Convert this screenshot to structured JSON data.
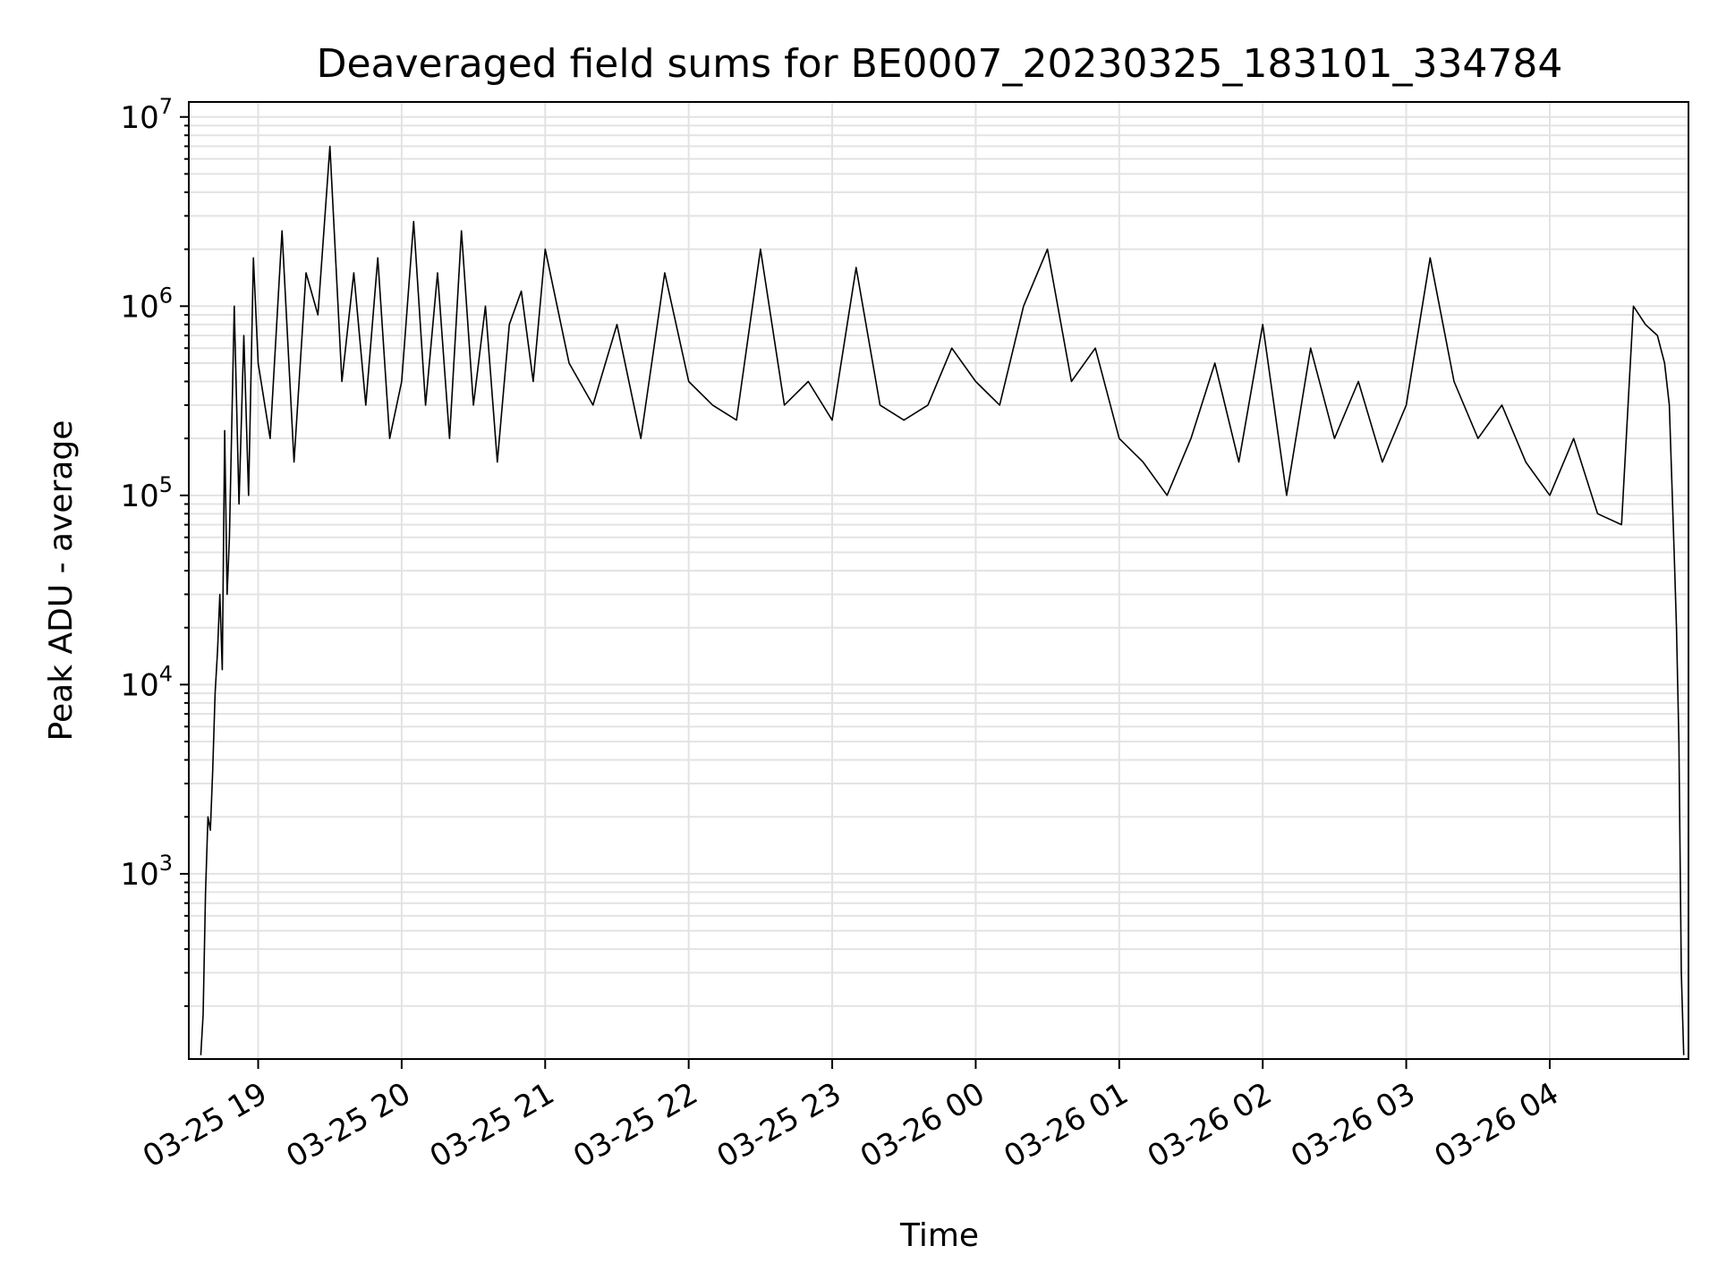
{
  "chart_data": {
    "type": "line",
    "title": "Deaveraged field sums for BE0007_20230325_183101_334784",
    "xlabel": "Time",
    "ylabel": "Peak ADU - average",
    "y_scale": "log",
    "ylim": [
      105,
      12000000
    ],
    "xlim": [
      "2023-03-25 18:31",
      "2023-03-26 04:58"
    ],
    "grid": true,
    "line_color": "#000000",
    "x_ticks": [
      {
        "t": "2023-03-25 19:00",
        "label": "03-25 19"
      },
      {
        "t": "2023-03-25 20:00",
        "label": "03-25 20"
      },
      {
        "t": "2023-03-25 21:00",
        "label": "03-25 21"
      },
      {
        "t": "2023-03-25 22:00",
        "label": "03-25 22"
      },
      {
        "t": "2023-03-25 23:00",
        "label": "03-25 23"
      },
      {
        "t": "2023-03-26 00:00",
        "label": "03-26 00"
      },
      {
        "t": "2023-03-26 01:00",
        "label": "03-26 01"
      },
      {
        "t": "2023-03-26 02:00",
        "label": "03-26 02"
      },
      {
        "t": "2023-03-26 03:00",
        "label": "03-26 03"
      },
      {
        "t": "2023-03-26 04:00",
        "label": "03-26 04"
      }
    ],
    "y_ticks": [
      {
        "value": 1000,
        "base": "10",
        "exp": "3"
      },
      {
        "value": 10000,
        "base": "10",
        "exp": "4"
      },
      {
        "value": 100000,
        "base": "10",
        "exp": "5"
      },
      {
        "value": 1000000,
        "base": "10",
        "exp": "6"
      },
      {
        "value": 10000000,
        "base": "10",
        "exp": "7"
      }
    ],
    "series": [
      {
        "x": [
          "2023-03-25 18:36",
          "2023-03-25 18:37",
          "2023-03-25 18:38",
          "2023-03-25 18:39",
          "2023-03-25 18:40",
          "2023-03-25 18:41",
          "2023-03-25 18:42",
          "2023-03-25 18:43",
          "2023-03-25 18:44",
          "2023-03-25 18:45",
          "2023-03-25 18:46",
          "2023-03-25 18:47",
          "2023-03-25 18:48",
          "2023-03-25 18:50",
          "2023-03-25 18:52",
          "2023-03-25 18:54",
          "2023-03-25 18:56",
          "2023-03-25 18:58",
          "2023-03-25 19:00",
          "2023-03-25 19:05",
          "2023-03-25 19:10",
          "2023-03-25 19:15",
          "2023-03-25 19:20",
          "2023-03-25 19:25",
          "2023-03-25 19:30",
          "2023-03-25 19:35",
          "2023-03-25 19:40",
          "2023-03-25 19:45",
          "2023-03-25 19:50",
          "2023-03-25 19:55",
          "2023-03-25 20:00",
          "2023-03-25 20:05",
          "2023-03-25 20:10",
          "2023-03-25 20:15",
          "2023-03-25 20:20",
          "2023-03-25 20:25",
          "2023-03-25 20:30",
          "2023-03-25 20:35",
          "2023-03-25 20:40",
          "2023-03-25 20:45",
          "2023-03-25 20:50",
          "2023-03-25 20:55",
          "2023-03-25 21:00",
          "2023-03-25 21:10",
          "2023-03-25 21:20",
          "2023-03-25 21:30",
          "2023-03-25 21:40",
          "2023-03-25 21:50",
          "2023-03-25 22:00",
          "2023-03-25 22:10",
          "2023-03-25 22:20",
          "2023-03-25 22:30",
          "2023-03-25 22:40",
          "2023-03-25 22:50",
          "2023-03-25 23:00",
          "2023-03-25 23:10",
          "2023-03-25 23:20",
          "2023-03-25 23:30",
          "2023-03-25 23:40",
          "2023-03-25 23:50",
          "2023-03-26 00:00",
          "2023-03-26 00:10",
          "2023-03-26 00:20",
          "2023-03-26 00:30",
          "2023-03-26 00:40",
          "2023-03-26 00:50",
          "2023-03-26 01:00",
          "2023-03-26 01:10",
          "2023-03-26 01:20",
          "2023-03-26 01:30",
          "2023-03-26 01:40",
          "2023-03-26 01:50",
          "2023-03-26 02:00",
          "2023-03-26 02:10",
          "2023-03-26 02:20",
          "2023-03-26 02:30",
          "2023-03-26 02:40",
          "2023-03-26 02:50",
          "2023-03-26 03:00",
          "2023-03-26 03:10",
          "2023-03-26 03:20",
          "2023-03-26 03:30",
          "2023-03-26 03:40",
          "2023-03-26 03:50",
          "2023-03-26 04:00",
          "2023-03-26 04:10",
          "2023-03-26 04:20",
          "2023-03-26 04:30",
          "2023-03-26 04:35",
          "2023-03-26 04:40",
          "2023-03-26 04:45",
          "2023-03-26 04:48",
          "2023-03-26 04:50",
          "2023-03-26 04:52",
          "2023-03-26 04:53",
          "2023-03-26 04:54",
          "2023-03-26 04:55",
          "2023-03-26 04:56"
        ],
        "y": [
          110,
          180,
          800,
          2000,
          1700,
          3500,
          9000,
          15000,
          30000,
          12000,
          220000,
          30000,
          60000,
          1000000,
          90000,
          700000,
          100000,
          1800000,
          500000,
          200000,
          2500000,
          150000,
          1500000,
          900000,
          7000000,
          400000,
          1500000,
          300000,
          1800000,
          200000,
          400000,
          2800000,
          300000,
          1500000,
          200000,
          2500000,
          300000,
          1000000,
          150000,
          800000,
          1200000,
          400000,
          2000000,
          500000,
          300000,
          800000,
          200000,
          1500000,
          400000,
          300000,
          250000,
          2000000,
          300000,
          400000,
          250000,
          1600000,
          300000,
          250000,
          300000,
          600000,
          400000,
          300000,
          1000000,
          2000000,
          400000,
          600000,
          200000,
          150000,
          100000,
          200000,
          500000,
          150000,
          800000,
          100000,
          600000,
          200000,
          400000,
          150000,
          300000,
          1800000,
          400000,
          200000,
          300000,
          150000,
          100000,
          200000,
          80000,
          70000,
          1000000,
          800000,
          700000,
          500000,
          300000,
          50000,
          20000,
          5000,
          300,
          110
        ]
      }
    ]
  }
}
